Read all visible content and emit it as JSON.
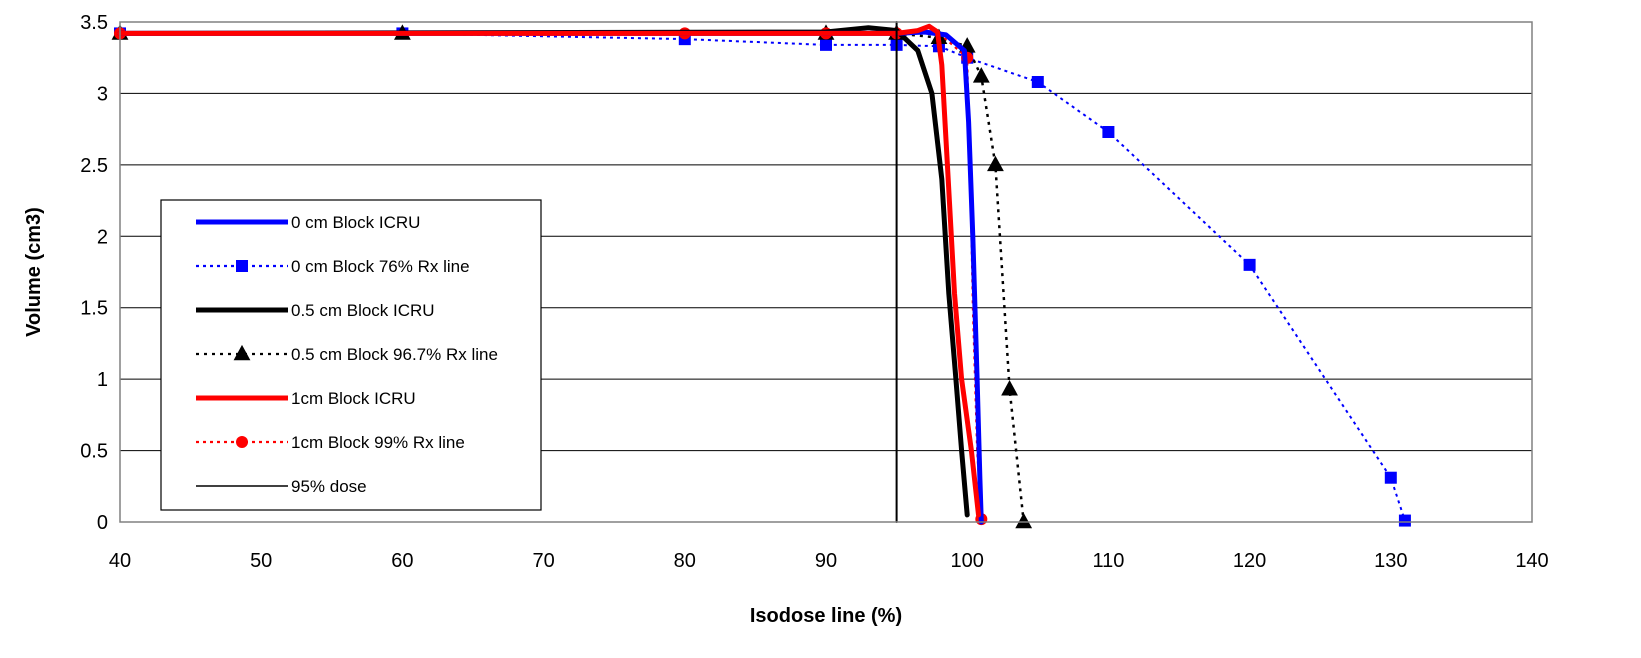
{
  "chart_data": {
    "type": "line",
    "title": "",
    "xlabel": "Isodose line (%)",
    "ylabel": "Volume (cm3)",
    "xlim": [
      40,
      140
    ],
    "ylim": [
      0,
      3.5
    ],
    "x_ticks": [
      "40",
      "50",
      "60",
      "70",
      "80",
      "90",
      "100",
      "110",
      "120",
      "130",
      "140"
    ],
    "y_ticks": [
      "0",
      "0.5",
      "1",
      "1.5",
      "2",
      "2.5",
      "3",
      "3.5"
    ],
    "grid": "horizontal",
    "legend_position": "left",
    "series": [
      {
        "name": "0 cm Block ICRU",
        "color": "#0000ff",
        "style": "solid",
        "width": 5,
        "marker": "none",
        "points": [
          [
            40,
            3.42
          ],
          [
            90,
            3.42
          ],
          [
            95,
            3.42
          ],
          [
            97,
            3.43
          ],
          [
            98.5,
            3.41
          ],
          [
            99.8,
            3.3
          ],
          [
            100.1,
            2.8
          ],
          [
            100.4,
            2.0
          ],
          [
            100.7,
            1.0
          ],
          [
            100.9,
            0.3
          ],
          [
            101,
            0
          ]
        ]
      },
      {
        "name": "0 cm Block 76% Rx line",
        "color": "#0000ff",
        "style": "dotted",
        "width": 2,
        "marker": "square",
        "points": [
          [
            40,
            3.42
          ],
          [
            60,
            3.42
          ],
          [
            80,
            3.38
          ],
          [
            90,
            3.34
          ],
          [
            95,
            3.34
          ],
          [
            98,
            3.33
          ],
          [
            100,
            3.25
          ],
          [
            105,
            3.08
          ],
          [
            110,
            2.73
          ],
          [
            120,
            1.8
          ],
          [
            130,
            0.31
          ],
          [
            131,
            0.01
          ]
        ]
      },
      {
        "name": "0.5 cm Block ICRU",
        "color": "#000000",
        "style": "solid",
        "width": 5,
        "marker": "none",
        "points": [
          [
            40,
            3.42
          ],
          [
            90,
            3.43
          ],
          [
            93,
            3.46
          ],
          [
            95,
            3.44
          ],
          [
            96.5,
            3.3
          ],
          [
            97.5,
            3.0
          ],
          [
            98.2,
            2.4
          ],
          [
            98.7,
            1.6
          ],
          [
            99.2,
            1.0
          ],
          [
            99.6,
            0.5
          ],
          [
            100,
            0.05
          ]
        ]
      },
      {
        "name": "0.5 cm Block 96.7% Rx line",
        "color": "#000000",
        "style": "dotted",
        "width": 2.5,
        "marker": "triangle",
        "points": [
          [
            40,
            3.42
          ],
          [
            60,
            3.42
          ],
          [
            90,
            3.42
          ],
          [
            95,
            3.42
          ],
          [
            98,
            3.39
          ],
          [
            100,
            3.33
          ],
          [
            101,
            3.12
          ],
          [
            102,
            2.5
          ],
          [
            103,
            0.93
          ],
          [
            104,
            0.0
          ]
        ]
      },
      {
        "name": "1cm Block ICRU",
        "color": "#ff0000",
        "style": "solid",
        "width": 5,
        "marker": "none",
        "points": [
          [
            40,
            3.42
          ],
          [
            95,
            3.42
          ],
          [
            96.5,
            3.44
          ],
          [
            97.3,
            3.47
          ],
          [
            97.9,
            3.43
          ],
          [
            98.2,
            3.2
          ],
          [
            98.6,
            2.5
          ],
          [
            99.1,
            1.6
          ],
          [
            99.6,
            1.0
          ],
          [
            100.3,
            0.5
          ],
          [
            100.8,
            0.05
          ]
        ]
      },
      {
        "name": "1cm Block 99% Rx line",
        "color": "#ff0000",
        "style": "dotted",
        "width": 2,
        "marker": "circle",
        "points": [
          [
            40,
            3.42
          ],
          [
            60,
            3.42
          ],
          [
            80,
            3.42
          ],
          [
            90,
            3.42
          ],
          [
            95,
            3.42
          ],
          [
            98,
            3.42
          ],
          [
            100,
            3.25
          ],
          [
            100.2,
            2.5
          ],
          [
            100.4,
            1.5
          ],
          [
            100.7,
            0.5
          ],
          [
            101,
            0.02
          ]
        ]
      },
      {
        "name": "95% dose",
        "color": "#000000",
        "style": "solid",
        "width": 2,
        "marker": "none",
        "points": [
          [
            95,
            0
          ],
          [
            95,
            3.5
          ]
        ]
      }
    ]
  }
}
